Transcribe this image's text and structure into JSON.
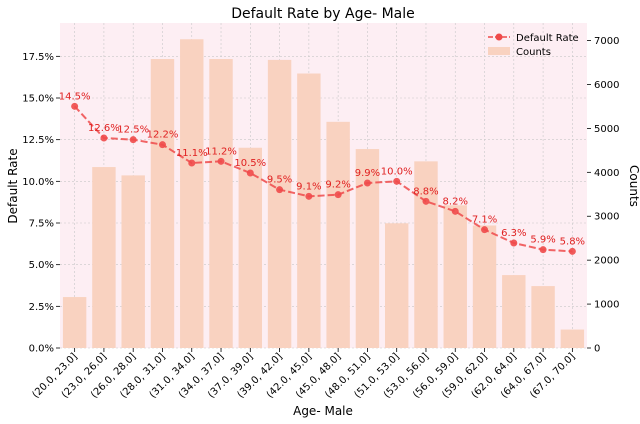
{
  "chart_data": {
    "type": "bar+line",
    "title": "Default Rate by Age- Male",
    "xlabel": "Age- Male",
    "ylabel_left": "Default Rate",
    "ylabel_right": "Counts",
    "categories": [
      "(20.0, 23.0]",
      "(23.0, 26.0]",
      "(26.0, 28.0]",
      "(28.0, 31.0]",
      "(31.0, 34.0]",
      "(34.0, 37.0]",
      "(37.0, 39.0]",
      "(39.0, 42.0]",
      "(42.0, 45.0]",
      "(45.0, 48.0]",
      "(48.0, 51.0]",
      "(51.0, 53.0]",
      "(53.0, 56.0]",
      "(56.0, 59.0]",
      "(59.0, 62.0]",
      "(62.0, 64.0]",
      "(64.0, 67.0]",
      "(67.0, 70.0]"
    ],
    "series": [
      {
        "name": "Default Rate",
        "kind": "line",
        "axis": "left",
        "values": [
          0.145,
          0.126,
          0.125,
          0.122,
          0.111,
          0.112,
          0.105,
          0.095,
          0.091,
          0.092,
          0.099,
          0.1,
          0.088,
          0.082,
          0.071,
          0.063,
          0.059,
          0.058
        ],
        "labels": [
          "14.5%",
          "12.6%",
          "12.5%",
          "12.2%",
          "11.1%",
          "11.2%",
          "10.5%",
          "9.5%",
          "9.1%",
          "9.2%",
          "9.9%",
          "10.0%",
          "8.8%",
          "8.2%",
          "7.1%",
          "6.3%",
          "5.9%",
          "5.8%"
        ]
      },
      {
        "name": "Counts",
        "kind": "bar",
        "axis": "right",
        "values": [
          1160,
          4120,
          3930,
          6580,
          7030,
          6580,
          4560,
          6560,
          6250,
          5150,
          4530,
          2840,
          4250,
          3250,
          2790,
          1660,
          1410,
          420
        ]
      }
    ],
    "ylim_left": [
      0,
      0.195
    ],
    "ylim_right": [
      0,
      7400
    ],
    "left_ticks": [
      0,
      0.025,
      0.05,
      0.075,
      0.1,
      0.125,
      0.15,
      0.175
    ],
    "left_tick_labels": [
      "0.0%",
      "2.5%",
      "5.0%",
      "7.5%",
      "10.0%",
      "12.5%",
      "15.0%",
      "17.5%"
    ],
    "right_ticks": [
      0,
      1000,
      2000,
      3000,
      4000,
      5000,
      6000,
      7000
    ],
    "right_tick_labels": [
      "0",
      "1000",
      "2000",
      "3000",
      "4000",
      "5000",
      "6000",
      "7000"
    ],
    "grid": true,
    "legend_position": "top-right",
    "colors": {
      "background": "#fdeef3",
      "bar": "#f9d2c0",
      "line": "#ef4a4a",
      "label": "#e02020",
      "grid": "#c8c8c8"
    }
  }
}
